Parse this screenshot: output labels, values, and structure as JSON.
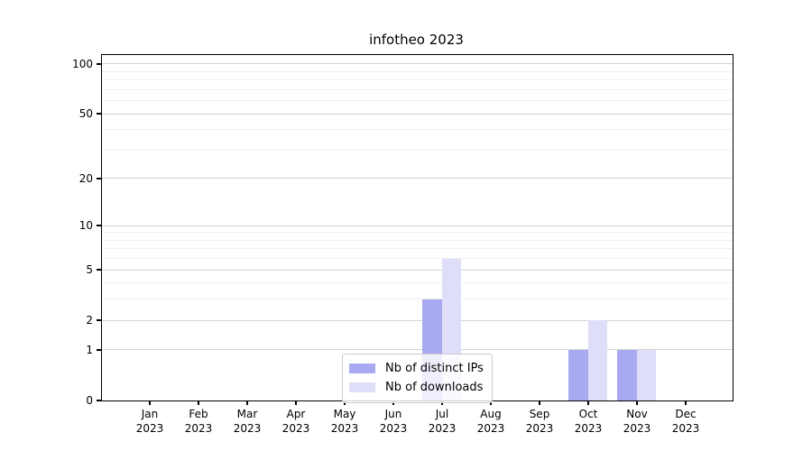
{
  "title": "infotheo 2023",
  "colors": {
    "distinct_ips": "#a9a9f1",
    "downloads": "#dedef8",
    "grid_major": "#d4d4d4",
    "grid_minor": "#f0f0f0",
    "axis": "#000000",
    "legend_border": "#cccccc"
  },
  "legend": {
    "items": [
      {
        "label": "Nb of distinct IPs",
        "color_key": "distinct_ips"
      },
      {
        "label": "Nb of downloads",
        "color_key": "downloads"
      }
    ]
  },
  "y_axis": {
    "tick_labels": [
      "0",
      "1",
      "2",
      "5",
      "10",
      "20",
      "50",
      "100"
    ]
  },
  "x_axis": {
    "months": [
      "Jan",
      "Feb",
      "Mar",
      "Apr",
      "May",
      "Jun",
      "Jul",
      "Aug",
      "Sep",
      "Oct",
      "Nov",
      "Dec"
    ],
    "year": "2023"
  },
  "chart_data": {
    "type": "bar",
    "title": "infotheo 2023",
    "categories": [
      "Jan 2023",
      "Feb 2023",
      "Mar 2023",
      "Apr 2023",
      "May 2023",
      "Jun 2023",
      "Jul 2023",
      "Aug 2023",
      "Sep 2023",
      "Oct 2023",
      "Nov 2023",
      "Dec 2023"
    ],
    "series": [
      {
        "name": "Nb of distinct IPs",
        "values": [
          0,
          0,
          0,
          0,
          0,
          0,
          3,
          0,
          0,
          1,
          1,
          0
        ]
      },
      {
        "name": "Nb of downloads",
        "values": [
          0,
          0,
          0,
          0,
          0,
          0,
          6,
          0,
          0,
          2,
          1,
          0
        ]
      }
    ],
    "xlabel": "",
    "ylabel": "",
    "yscale": "log1p",
    "ylim": [
      0,
      113
    ],
    "y_major_ticks": [
      0,
      1,
      2,
      5,
      10,
      20,
      50,
      100
    ],
    "y_minor_ticks": [
      3,
      4,
      6,
      7,
      8,
      9,
      30,
      40,
      60,
      70,
      80,
      90
    ],
    "grid": true,
    "legend_position": "lower center"
  }
}
